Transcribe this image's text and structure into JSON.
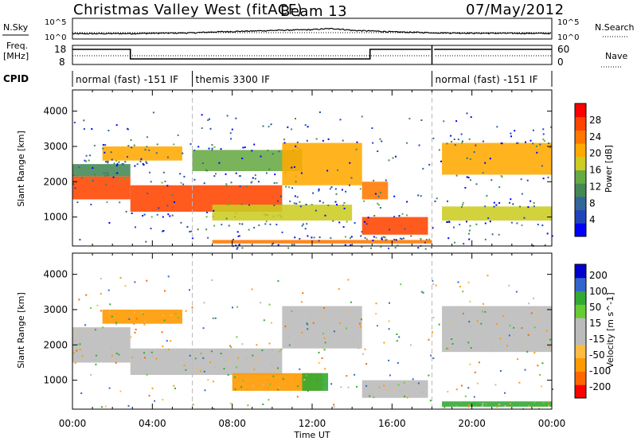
{
  "header": {
    "station": "Christmas Valley West (fitACF)",
    "beam": "Beam 13",
    "date": "07/May/2012"
  },
  "params": {
    "nsky_label": "N.Sky",
    "nsearch_label": "N.Search",
    "exp_ticks_left": [
      "10^5",
      "10^0"
    ],
    "exp_ticks_right": [
      "10^5",
      "10^0"
    ],
    "freq_label": "Freq.",
    "freq_unit": "[MHz]",
    "freq_ticks": [
      "18",
      "8"
    ],
    "nave_label": "Nave",
    "nave_ticks": [
      "60",
      "0"
    ],
    "cpid_label": "CPID"
  },
  "cpid_modes": [
    {
      "label": "normal (fast) -151 IF",
      "start_h": 0.0,
      "end_h": 6.0
    },
    {
      "label": "themis 3300 IF",
      "start_h": 6.0,
      "end_h": 18.0
    },
    {
      "label": "normal (fast) -151 IF",
      "start_h": 18.0,
      "end_h": 24.0
    }
  ],
  "colors": {
    "power_scale": [
      "#0000ff",
      "#2244bb",
      "#336699",
      "#448855",
      "#66aa44",
      "#cccc22",
      "#ffaa00",
      "#ff7700",
      "#ff4400",
      "#ff0000"
    ],
    "velocity_scale": [
      "#ff0000",
      "#ff6600",
      "#ff9900",
      "#ffbb44",
      "#bbbbbb",
      "#bbbbbb",
      "#66cc33",
      "#33aa33",
      "#3366cc",
      "#0000cc"
    ]
  },
  "chart_data": [
    {
      "type": "line",
      "panel": "N.Sky / N.Search noise",
      "x_unit": "hours UT",
      "xlim": [
        0,
        24
      ],
      "scale": "log",
      "ylim": [
        1,
        100000
      ],
      "series": [
        {
          "name": "N.Sky",
          "x": [
            0,
            3,
            6,
            9,
            12,
            13,
            14,
            16,
            18,
            20,
            22,
            24
          ],
          "y": [
            10,
            12,
            18,
            60,
            150,
            300,
            90,
            35,
            20,
            15,
            14,
            13
          ]
        }
      ]
    },
    {
      "type": "line",
      "panel": "Freq. / Nave",
      "x_unit": "hours UT",
      "xlim": [
        0,
        24
      ],
      "series": [
        {
          "name": "Freq.",
          "x": [
            0,
            2.9,
            2.9,
            14.9,
            14.9,
            24
          ],
          "y": [
            16.5,
            16.5,
            10.5,
            10.5,
            16.5,
            16.5
          ]
        },
        {
          "name": "Nave",
          "x": [
            0,
            24
          ],
          "y": [
            20,
            20
          ]
        }
      ]
    },
    {
      "type": "heatmap",
      "panel": "Power",
      "xlabel": "Time UT",
      "ylabel": "Slant Range [km]",
      "x_ticks": [
        "00:00",
        "04:00",
        "08:00",
        "12:00",
        "16:00",
        "20:00",
        "00:00"
      ],
      "y_ticks": [
        1000,
        2000,
        3000,
        4000
      ],
      "ylim": [
        180,
        4600
      ],
      "colorbar_label": "Power [dB]",
      "colorbar_ticks": [
        4,
        8,
        12,
        16,
        20,
        24,
        28
      ],
      "bands": [
        {
          "t0": 0.0,
          "t1": 2.9,
          "r0": 1500,
          "r1": 2150,
          "level": 27
        },
        {
          "t0": 0.0,
          "t1": 2.9,
          "r0": 2150,
          "r1": 2500,
          "level": 10
        },
        {
          "t0": 2.9,
          "t1": 10.5,
          "r0": 1150,
          "r1": 1900,
          "level": 26
        },
        {
          "t0": 1.5,
          "t1": 5.5,
          "r0": 2600,
          "r1": 3000,
          "level": 20
        },
        {
          "t0": 6.0,
          "t1": 11.5,
          "r0": 2300,
          "r1": 2900,
          "level": 14
        },
        {
          "t0": 10.5,
          "t1": 14.5,
          "r0": 1900,
          "r1": 3100,
          "level": 22
        },
        {
          "t0": 14.5,
          "t1": 15.8,
          "r0": 1500,
          "r1": 2000,
          "level": 23
        },
        {
          "t0": 7.0,
          "t1": 14.0,
          "r0": 900,
          "r1": 1350,
          "level": 16
        },
        {
          "t0": 14.5,
          "t1": 17.8,
          "r0": 500,
          "r1": 1000,
          "level": 27
        },
        {
          "t0": 18.5,
          "t1": 24.0,
          "r0": 2200,
          "r1": 3100,
          "level": 21
        },
        {
          "t0": 18.5,
          "t1": 24.0,
          "r0": 900,
          "r1": 1300,
          "level": 16
        },
        {
          "t0": 7.0,
          "t1": 18.0,
          "r0": 250,
          "r1": 350,
          "level": 25
        }
      ]
    },
    {
      "type": "heatmap",
      "panel": "Velocity",
      "xlabel": "Time UT",
      "ylabel": "Slant Range [km]",
      "x_ticks": [
        "00:00",
        "04:00",
        "08:00",
        "12:00",
        "16:00",
        "20:00",
        "00:00"
      ],
      "y_ticks": [
        1000,
        2000,
        3000,
        4000
      ],
      "ylim": [
        180,
        4600
      ],
      "colorbar_label": "Velocity [m s^-1]",
      "colorbar_ticks": [
        200,
        100,
        50,
        15,
        -15,
        -50,
        -100,
        -200
      ],
      "bands": [
        {
          "t0": 0.0,
          "t1": 2.9,
          "r0": 1500,
          "r1": 2500,
          "v": 0
        },
        {
          "t0": 2.9,
          "t1": 10.5,
          "r0": 1150,
          "r1": 1900,
          "v": -5
        },
        {
          "t0": 1.5,
          "t1": 5.5,
          "r0": 2600,
          "r1": 3000,
          "v": -60
        },
        {
          "t0": 10.5,
          "t1": 14.5,
          "r0": 1900,
          "r1": 3100,
          "v": 0
        },
        {
          "t0": 8.0,
          "t1": 12.5,
          "r0": 700,
          "r1": 1200,
          "v": -60
        },
        {
          "t0": 11.5,
          "t1": 12.8,
          "r0": 700,
          "r1": 1200,
          "v": 60
        },
        {
          "t0": 14.5,
          "t1": 17.8,
          "r0": 500,
          "r1": 1000,
          "v": 0
        },
        {
          "t0": 18.5,
          "t1": 24.0,
          "r0": 1800,
          "r1": 3100,
          "v": 0
        },
        {
          "t0": 18.5,
          "t1": 24.0,
          "r0": 250,
          "r1": 400,
          "v": 60
        }
      ]
    }
  ]
}
